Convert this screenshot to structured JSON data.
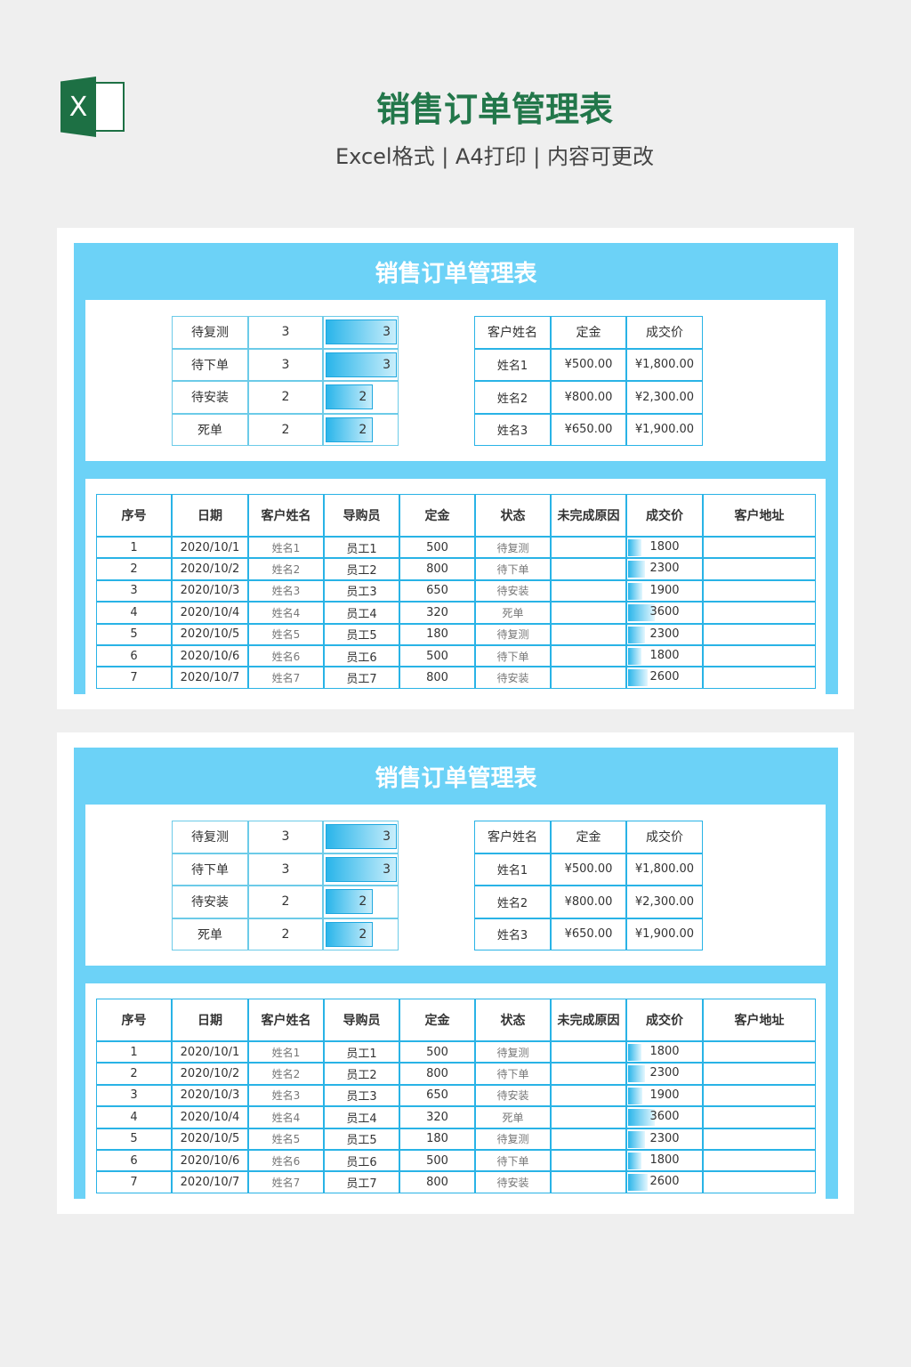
{
  "header": {
    "icon": "X",
    "title": "销售订单管理表",
    "subtitle": "Excel格式 | A4打印 | 内容可更改"
  },
  "sheet": {
    "title": "销售订单管理表",
    "status_table": [
      {
        "label": "待复测",
        "count": 3
      },
      {
        "label": "待下单",
        "count": 3
      },
      {
        "label": "待安装",
        "count": 2
      },
      {
        "label": "死单",
        "count": 2
      }
    ],
    "customer_table": {
      "columns": [
        "客户姓名",
        "定金",
        "成交价"
      ],
      "rows": [
        [
          "姓名1",
          "¥500.00",
          "¥1,800.00"
        ],
        [
          "姓名2",
          "¥800.00",
          "¥2,300.00"
        ],
        [
          "姓名3",
          "¥650.00",
          "¥1,900.00"
        ]
      ]
    },
    "orders": {
      "columns": [
        "序号",
        "日期",
        "客户姓名",
        "导购员",
        "定金",
        "状态",
        "未完成原因",
        "成交价",
        "客户地址"
      ],
      "rows": [
        {
          "no": 1,
          "date": "2020/10/1",
          "name": "姓名1",
          "staff": "员工1",
          "deposit": 500,
          "status": "待复测",
          "price": 1800
        },
        {
          "no": 2,
          "date": "2020/10/2",
          "name": "姓名2",
          "staff": "员工2",
          "deposit": 800,
          "status": "待下单",
          "price": 2300
        },
        {
          "no": 3,
          "date": "2020/10/3",
          "name": "姓名3",
          "staff": "员工3",
          "deposit": 650,
          "status": "待安装",
          "price": 1900
        },
        {
          "no": 4,
          "date": "2020/10/4",
          "name": "姓名4",
          "staff": "员工4",
          "deposit": 320,
          "status": "死单",
          "price": 3600
        },
        {
          "no": 5,
          "date": "2020/10/5",
          "name": "姓名5",
          "staff": "员工5",
          "deposit": 180,
          "status": "待复测",
          "price": 2300
        },
        {
          "no": 6,
          "date": "2020/10/6",
          "name": "姓名6",
          "staff": "员工6",
          "deposit": 500,
          "status": "待下单",
          "price": 1800
        },
        {
          "no": 7,
          "date": "2020/10/7",
          "name": "姓名7",
          "staff": "员工7",
          "deposit": 800,
          "status": "待安装",
          "price": 2600
        }
      ]
    }
  }
}
